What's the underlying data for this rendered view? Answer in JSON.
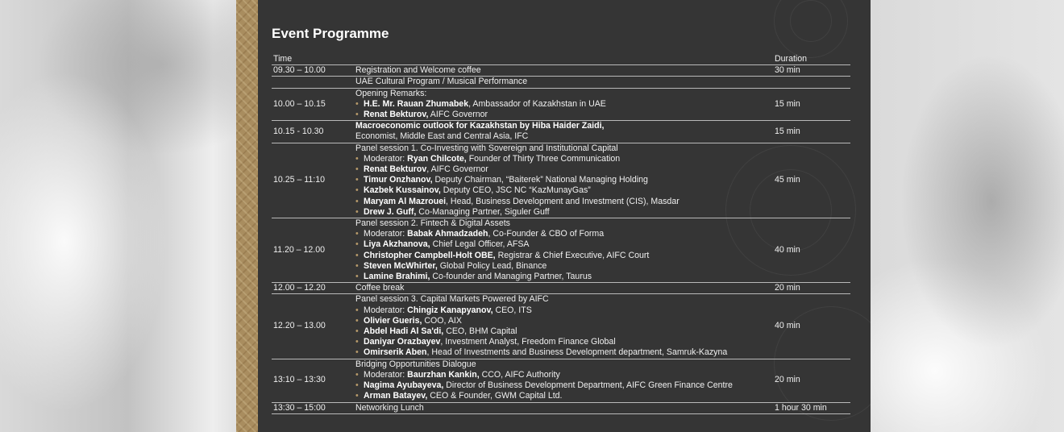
{
  "title": "Event Programme",
  "headers": {
    "time": "Time",
    "session": "",
    "duration": "Duration"
  },
  "colors": {
    "panel": "#353535",
    "gold": "#a98d5f",
    "bullet": "#b79a6a"
  },
  "rows": [
    {
      "time": "09.30 – 10.00",
      "duration": "30 min",
      "lines": [
        {
          "bullet": false,
          "pre": "",
          "bold": "",
          "text": "Registration and Welcome coffee"
        }
      ]
    },
    {
      "time": "",
      "duration": "",
      "lines": [
        {
          "bullet": false,
          "pre": "",
          "bold": "",
          "text": "UAE Cultural Program / Musical Performance"
        }
      ]
    },
    {
      "time": "10.00 – 10.15",
      "duration": "15 min",
      "lines": [
        {
          "bullet": false,
          "pre": "",
          "bold": "",
          "text": "Opening Remarks:"
        },
        {
          "bullet": true,
          "pre": "",
          "bold": "H.E. Mr. Rauan Zhumabek",
          "text": ", Ambassador of Kazakhstan in UAE"
        },
        {
          "bullet": true,
          "pre": "",
          "bold": "Renat Bekturov,",
          "text": " AIFC Governor"
        }
      ]
    },
    {
      "time": "10.15 - 10.30",
      "duration": "15 min",
      "lines": [
        {
          "bullet": false,
          "pre": "",
          "bold": "Macroeconomic outlook for Kazakhstan by Hiba Haider Zaidi,",
          "text": ""
        },
        {
          "bullet": false,
          "pre": "",
          "bold": "",
          "text": "Economist, Middle East and Central Asia, IFC"
        }
      ]
    },
    {
      "time": "10.25 – 11:10",
      "duration": "45 min",
      "lines": [
        {
          "bullet": false,
          "pre": "",
          "bold": "",
          "text": "Panel session 1. Co-Investing with Sovereign and Institutional Capital"
        },
        {
          "bullet": true,
          "pre": "Moderator: ",
          "bold": "Ryan Chilcote,",
          "text": " Founder of Thirty Three Communication"
        },
        {
          "bullet": true,
          "pre": "",
          "bold": "Renat Bekturov",
          "text": ", AIFC Governor"
        },
        {
          "bullet": true,
          "pre": "",
          "bold": "Timur Onzhanov,",
          "text": " Deputy Chairman, “Baiterek” National Managing Holding"
        },
        {
          "bullet": true,
          "pre": "",
          "bold": "Kazbek Kussainov,",
          "text": " Deputy CEO, JSC NC “KazMunayGas”"
        },
        {
          "bullet": true,
          "pre": "",
          "bold": "Maryam Al Mazrouei",
          "text": ", Head, Business Development and Investment (CIS), Masdar"
        },
        {
          "bullet": true,
          "pre": "",
          "bold": "Drew J. Guff,",
          "text": " Co-Managing Partner, Siguler Guff"
        }
      ]
    },
    {
      "time": "11.20 – 12.00",
      "duration": "40 min",
      "lines": [
        {
          "bullet": false,
          "pre": "",
          "bold": "",
          "text": "Panel session 2. Fintech & Digital Assets"
        },
        {
          "bullet": true,
          "pre": "Moderator: ",
          "bold": "Babak Ahmadzadeh",
          "text": ", Co-Founder & CBO of Forma"
        },
        {
          "bullet": true,
          "pre": "",
          "bold": "Liya Akzhanova,",
          "text": " Chief Legal Officer, AFSA"
        },
        {
          "bullet": true,
          "pre": "",
          "bold": "Christopher Campbell-Holt OBE,",
          "text": " Registrar & Chief Executive, AIFC Court"
        },
        {
          "bullet": true,
          "pre": "",
          "bold": "Steven McWhirter,",
          "text": " Global Policy Lead, Binance"
        },
        {
          "bullet": true,
          "pre": "",
          "bold": "Lamine Brahimi,",
          "text": " Co-founder and Managing Partner, Taurus"
        }
      ]
    },
    {
      "time": "12.00 – 12.20",
      "duration": "20 min",
      "lines": [
        {
          "bullet": false,
          "pre": "",
          "bold": "",
          "text": "Coffee break"
        }
      ]
    },
    {
      "time": "12.20 – 13.00",
      "duration": "40 min",
      "lines": [
        {
          "bullet": false,
          "pre": "",
          "bold": "",
          "text": "Panel session 3. Capital Markets Powered by AIFC"
        },
        {
          "bullet": true,
          "pre": "Moderator: ",
          "bold": "Chingiz Kanapyanov,",
          "text": " CEO, ITS"
        },
        {
          "bullet": true,
          "pre": "",
          "bold": "Olivier Gueris,",
          "text": " COO, AIX"
        },
        {
          "bullet": true,
          "pre": "",
          "bold": "Abdel Hadi Al Sa'di,",
          "text": " CEO, BHM Capital"
        },
        {
          "bullet": true,
          "pre": "",
          "bold": "Daniyar Orazbayev",
          "text": ", Investment Analyst, Freedom Finance Global"
        },
        {
          "bullet": true,
          "pre": "",
          "bold": "Omirserik Aben",
          "text": ", Head of Investments and Business Development department, Samruk-Kazyna"
        }
      ]
    },
    {
      "time": "13:10 – 13:30",
      "duration": "20 min",
      "lines": [
        {
          "bullet": false,
          "pre": "",
          "bold": "",
          "text": "Bridging Opportunities Dialogue"
        },
        {
          "bullet": true,
          "pre": "Moderator: ",
          "bold": "Baurzhan Kankin,",
          "text": " CCO, AIFC Authority"
        },
        {
          "bullet": true,
          "pre": "",
          "bold": "Nagima Ayubayeva,",
          "text": " Director of Business Development Department, AIFC Green Finance Centre"
        },
        {
          "bullet": true,
          "pre": "",
          "bold": "Arman Batayev,",
          "text": " CEO & Founder, GWM Capital Ltd."
        }
      ]
    },
    {
      "time": "13:30 – 15:00",
      "duration": "1 hour 30 min",
      "lines": [
        {
          "bullet": false,
          "pre": "",
          "bold": "",
          "text": "Networking Lunch"
        }
      ]
    }
  ]
}
